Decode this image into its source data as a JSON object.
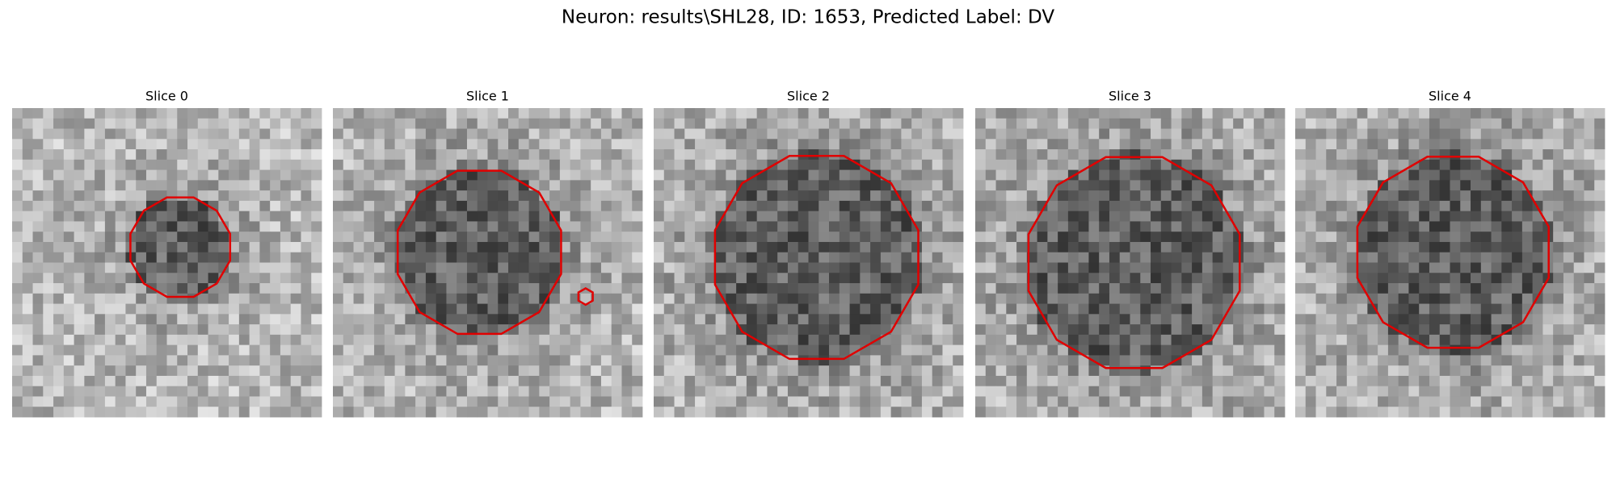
{
  "header": {
    "title": "Neuron: results\\SHL28, ID: 1653, Predicted Label: DV"
  },
  "panels": [
    {
      "title": "Slice 0"
    },
    {
      "title": "Slice 1"
    },
    {
      "title": "Slice 2"
    },
    {
      "title": "Slice 3"
    },
    {
      "title": "Slice 4"
    }
  ]
}
